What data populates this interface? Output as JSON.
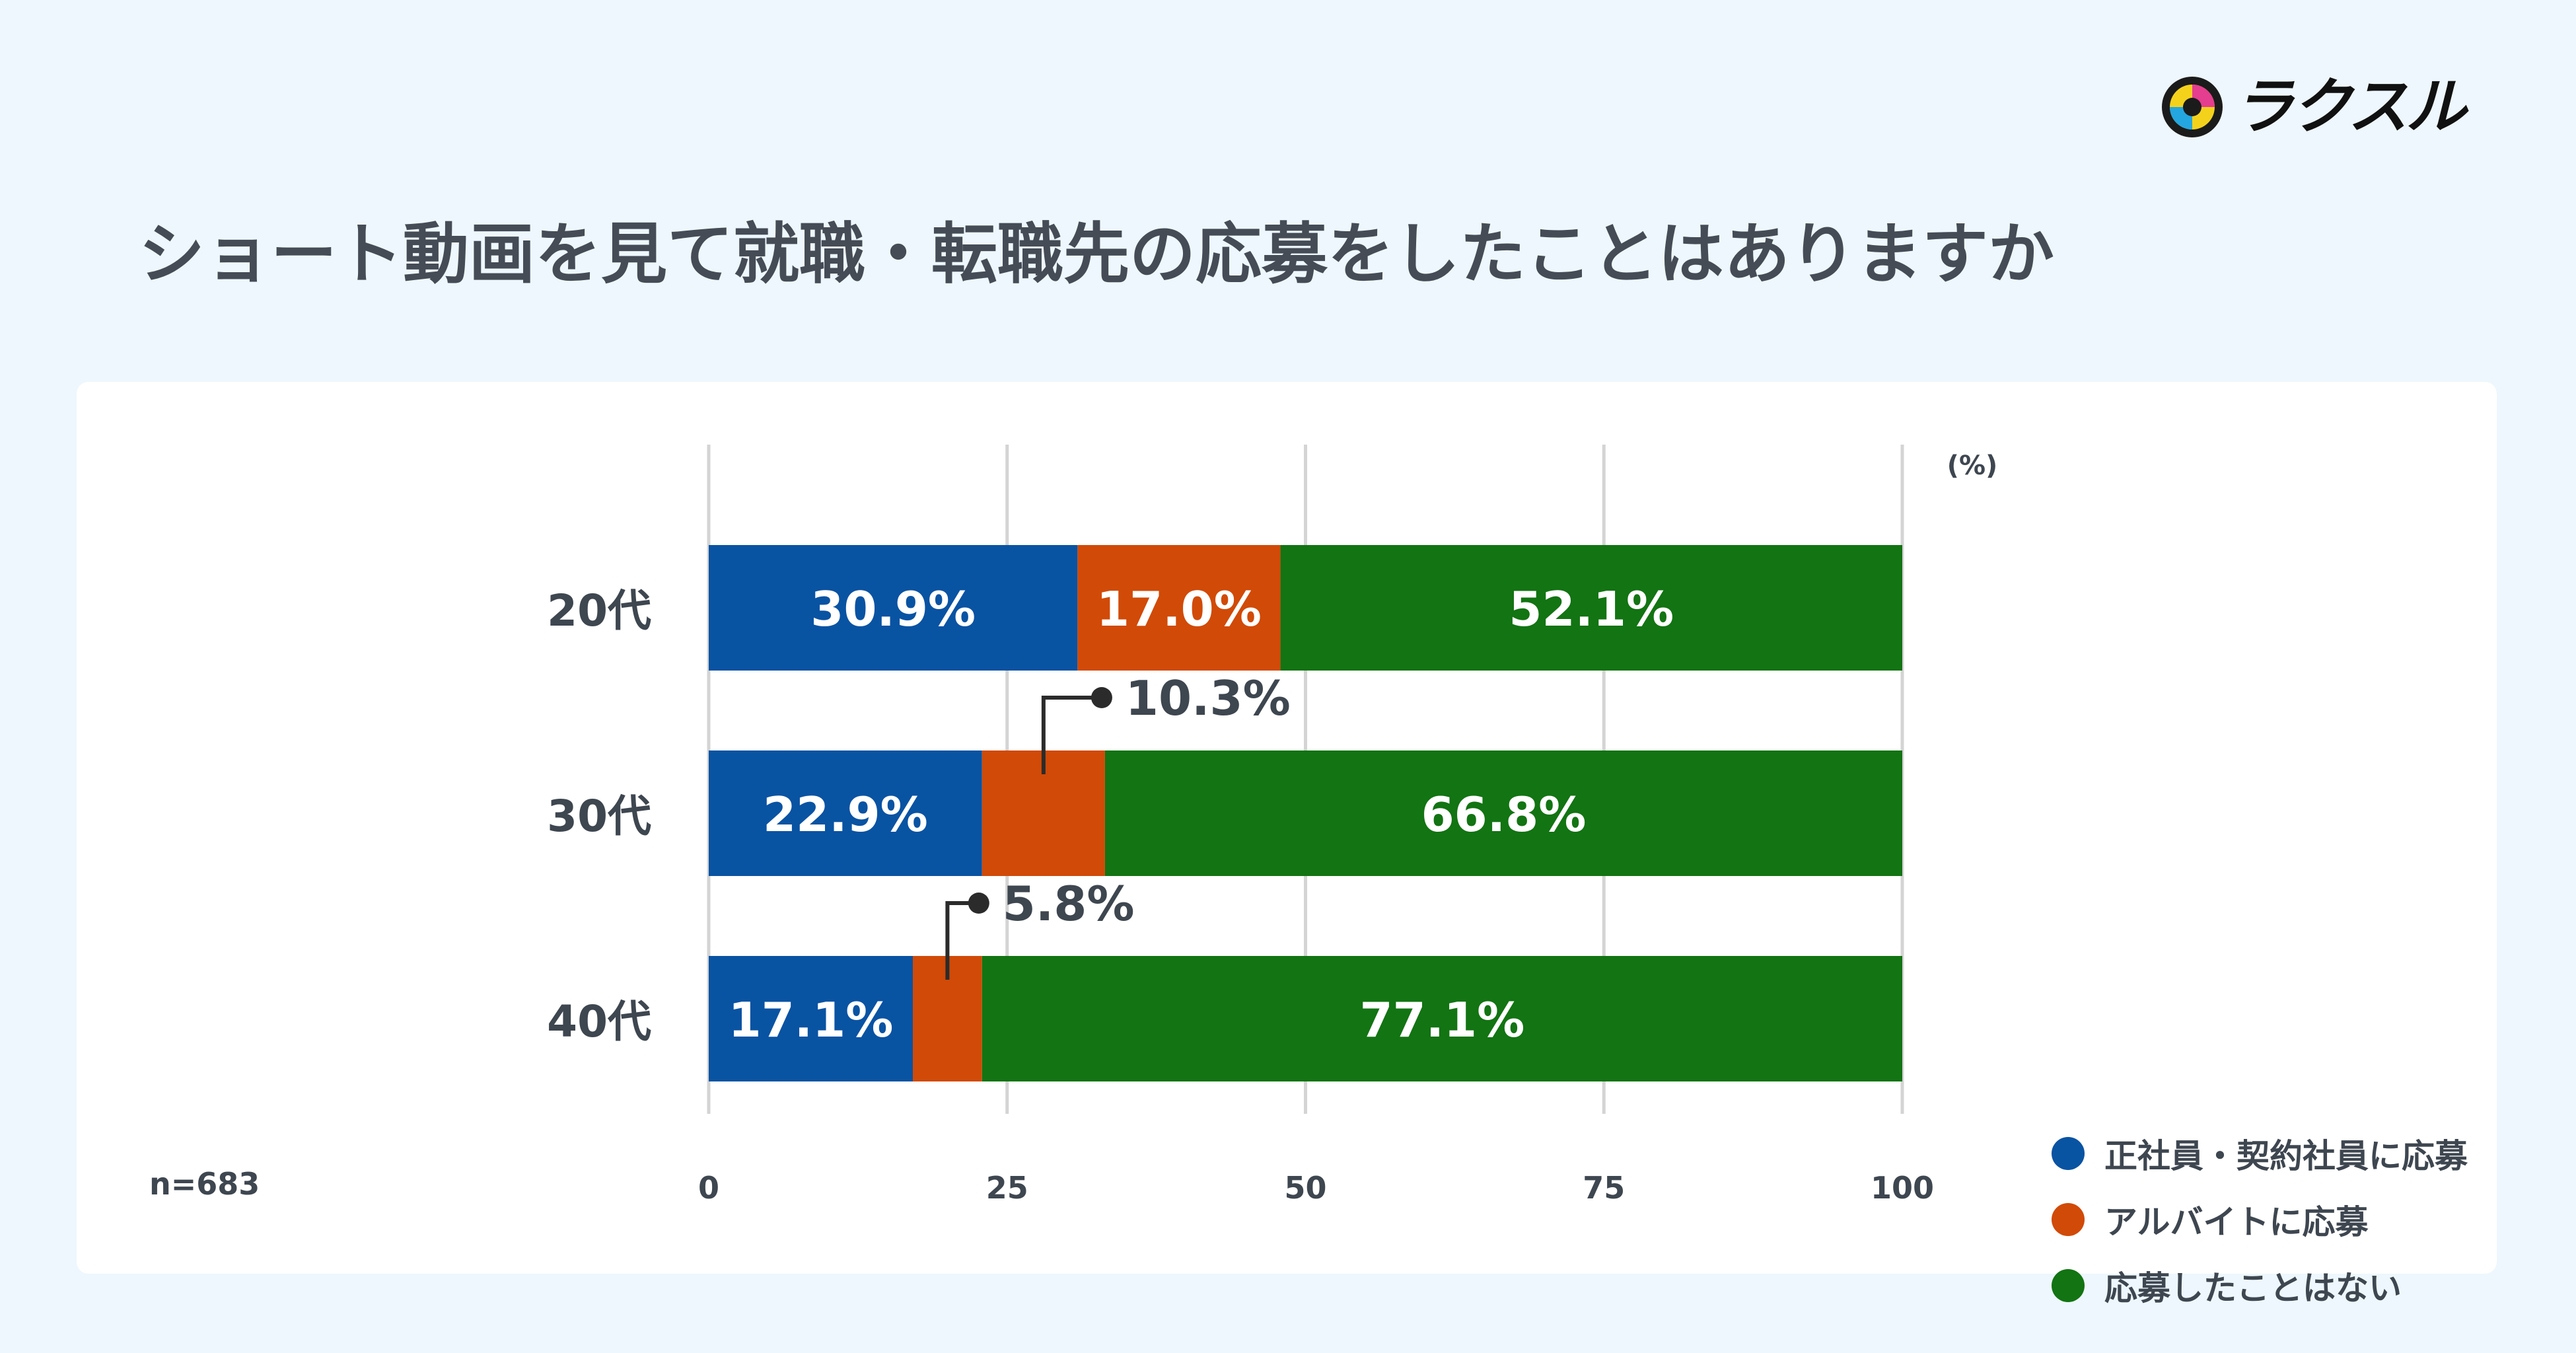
{
  "brand": {
    "logo_text": "ラクスル"
  },
  "colors": {
    "series1": "#0953a3",
    "series2": "#d14a07",
    "series3": "#127412",
    "grid": "#d4d4d4",
    "text": "#3e4650"
  },
  "chart_data": {
    "type": "bar",
    "orientation": "horizontal",
    "stacked": true,
    "title": "ショート動画を見て就職・転職先の応募をしたことはありますか",
    "unit_label": "(%)",
    "sample_note": "n=683",
    "categories": [
      "20代",
      "30代",
      "40代"
    ],
    "series": [
      {
        "name": "正社員・契約社員に応募",
        "values": [
          30.9,
          22.9,
          17.1
        ],
        "labels": [
          "30.9%",
          "22.9%",
          "17.1%"
        ]
      },
      {
        "name": "アルバイトに応募",
        "values": [
          17.0,
          10.3,
          5.8
        ],
        "labels": [
          "17.0%",
          "10.3%",
          "5.8%"
        ]
      },
      {
        "name": "応募したことはない",
        "values": [
          52.1,
          66.8,
          77.1
        ],
        "labels": [
          "52.1%",
          "66.8%",
          "77.1%"
        ]
      }
    ],
    "xlim": [
      0,
      100
    ],
    "xticks": [
      0,
      25,
      50,
      75,
      100
    ],
    "grid": true,
    "legend_position": "right"
  }
}
